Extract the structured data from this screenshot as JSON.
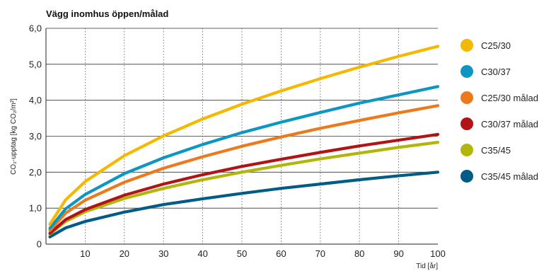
{
  "chart_data": {
    "type": "line",
    "title": "Vägg inomhus öppen/målad",
    "xlabel": "Tid [år]",
    "ylabel": "CO₂-upptag [kg CO₂/m²]",
    "xlim": [
      0,
      100
    ],
    "ylim": [
      0,
      6
    ],
    "x_ticks": [
      "10",
      "20",
      "30",
      "40",
      "50",
      "60",
      "70",
      "80",
      "90",
      "100"
    ],
    "y_ticks": [
      "0",
      "1,0",
      "2,0",
      "3,0",
      "4,0",
      "5,0",
      "6,0"
    ],
    "grid": true,
    "legend_position": "right",
    "series": [
      {
        "name": "C25/30",
        "color": "#f5b800",
        "x": [
          1,
          5,
          10,
          20,
          30,
          40,
          50,
          60,
          70,
          80,
          90,
          100
        ],
        "y": [
          0.55,
          1.23,
          1.74,
          2.46,
          3.01,
          3.48,
          3.89,
          4.26,
          4.6,
          4.92,
          5.22,
          5.5
        ]
      },
      {
        "name": "C30/37",
        "color": "#0e96c2",
        "x": [
          1,
          5,
          10,
          20,
          30,
          40,
          50,
          60,
          70,
          80,
          90,
          100
        ],
        "y": [
          0.44,
          0.98,
          1.38,
          1.96,
          2.4,
          2.77,
          3.1,
          3.39,
          3.66,
          3.92,
          4.15,
          4.38
        ]
      },
      {
        "name": "C25/30 målad",
        "color": "#ec7a1c",
        "x": [
          1,
          5,
          10,
          20,
          30,
          40,
          50,
          60,
          70,
          80,
          90,
          100
        ],
        "y": [
          0.38,
          0.86,
          1.22,
          1.72,
          2.11,
          2.43,
          2.72,
          2.98,
          3.22,
          3.44,
          3.65,
          3.85
        ]
      },
      {
        "name": "C30/37 målad",
        "color": "#b01416",
        "x": [
          1,
          5,
          10,
          20,
          30,
          40,
          50,
          60,
          70,
          80,
          90,
          100
        ],
        "y": [
          0.3,
          0.68,
          0.96,
          1.36,
          1.67,
          1.93,
          2.16,
          2.36,
          2.55,
          2.73,
          2.89,
          3.05
        ]
      },
      {
        "name": "C35/45",
        "color": "#b3b60a",
        "x": [
          1,
          5,
          10,
          20,
          30,
          40,
          50,
          60,
          70,
          80,
          90,
          100
        ],
        "y": [
          0.28,
          0.63,
          0.9,
          1.27,
          1.55,
          1.79,
          2.0,
          2.19,
          2.37,
          2.53,
          2.69,
          2.83
        ]
      },
      {
        "name": "C35/45 målad",
        "color": "#005b86",
        "x": [
          1,
          5,
          10,
          20,
          30,
          40,
          50,
          60,
          70,
          80,
          90,
          100
        ],
        "y": [
          0.2,
          0.45,
          0.63,
          0.89,
          1.1,
          1.26,
          1.41,
          1.55,
          1.67,
          1.79,
          1.9,
          2.0
        ]
      }
    ]
  }
}
